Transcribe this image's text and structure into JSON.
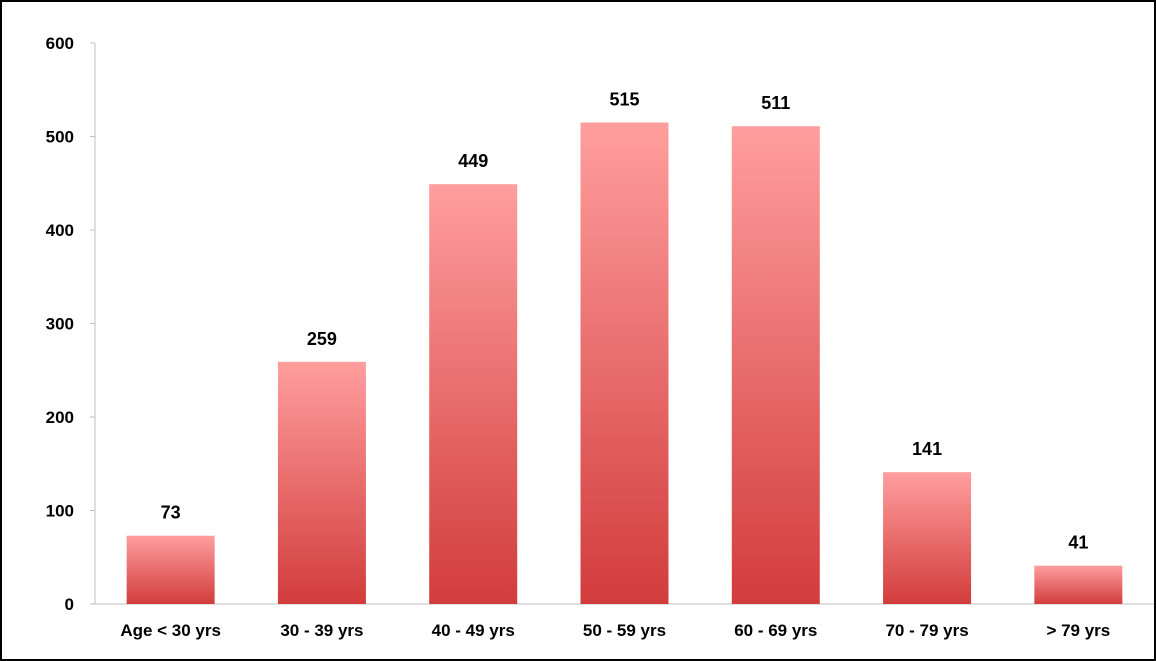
{
  "chart_data": {
    "type": "bar",
    "title": "",
    "categories": [
      "Age < 30 yrs",
      "30 - 39 yrs",
      "40 - 49 yrs",
      "50 - 59 yrs",
      "60 - 69 yrs",
      "70 - 79 yrs",
      "> 79 yrs"
    ],
    "values": [
      73,
      259,
      449,
      515,
      511,
      141,
      41
    ],
    "ylim": [
      0,
      600
    ],
    "yticks": [
      0,
      100,
      200,
      300,
      400,
      500,
      600
    ],
    "xlabel": "",
    "ylabel": "",
    "grid": false,
    "data_labels": true,
    "colors": {
      "bar_top": "#ff9e9e",
      "bar_bottom": "#d23c3c",
      "axis": "#bfbfbf",
      "text": "#000000"
    }
  }
}
